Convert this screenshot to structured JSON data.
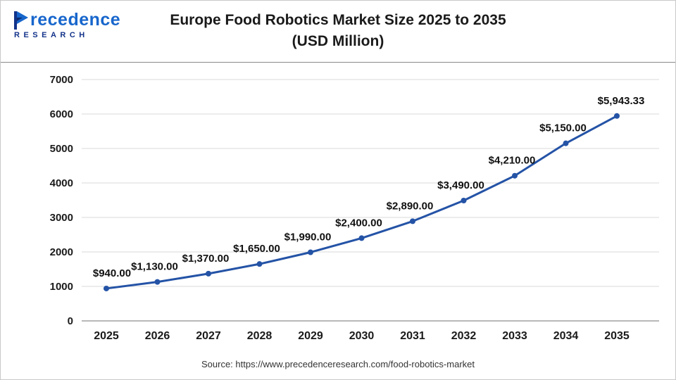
{
  "header": {
    "logo": {
      "icon": "precedence-logo-icon",
      "line1": "recedence",
      "line2": "RESEARCH"
    },
    "title_line1": "Europe Food Robotics Market Size 2025 to 2035",
    "title_line2": "(USD Million)"
  },
  "chart_data": {
    "type": "line",
    "title": "Europe Food Robotics Market Size 2025 to 2035 (USD Million)",
    "categories": [
      "2025",
      "2026",
      "2027",
      "2028",
      "2029",
      "2030",
      "2031",
      "2032",
      "2033",
      "2034",
      "2035"
    ],
    "series": [
      {
        "name": "Europe Food Robotics Market Size (USD Million)",
        "values": [
          940,
          1130,
          1370,
          1650,
          1990,
          2400,
          2890,
          3490,
          4210,
          5150,
          5943.33
        ]
      }
    ],
    "point_labels": [
      "$940.00",
      "$1,130.00",
      "$1,370.00",
      "$1,650.00",
      "$1,990.00",
      "$2,400.00",
      "$2,890.00",
      "$3,490.00",
      "$4,210.00",
      "$5,150.00",
      "$5,943.33"
    ],
    "xlabel": "",
    "ylabel": "",
    "ylim": [
      0,
      7000
    ],
    "yticks": [
      0,
      1000,
      2000,
      3000,
      4000,
      5000,
      6000,
      7000
    ],
    "grid": "horizontal",
    "legend": "none",
    "line_color": "#2453a6",
    "marker_color": "#2453a6",
    "gridline_color": "#d9d9d9",
    "axis_line_color": "#a0a0a0",
    "label_color": "#111111"
  },
  "footer": {
    "source": "Source: https://www.precedenceresearch.com/food-robotics-market"
  }
}
